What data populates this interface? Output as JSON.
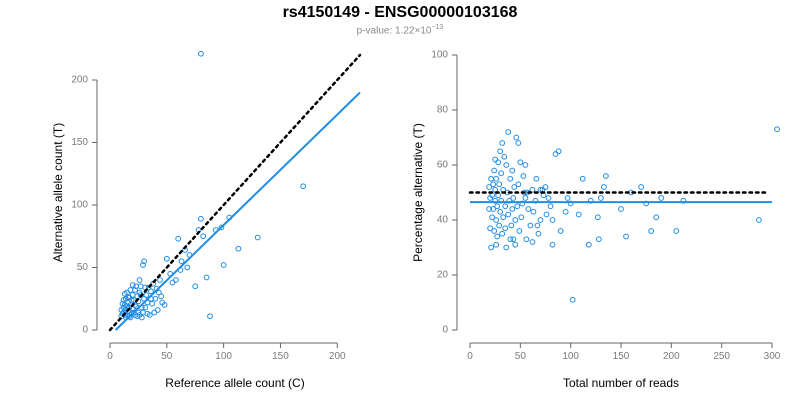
{
  "title": "rs4150149 - ENSG00000103168",
  "subtitle": {
    "prefix": "p-value: ",
    "mantissa": "1.22×10",
    "exponent": "−13"
  },
  "colors": {
    "points": "#1f8ce6",
    "fit": "#1f8ce6",
    "reference": "#000000",
    "axis": "#666666"
  },
  "chart_data": [
    {
      "type": "scatter",
      "xlabel": "Reference allele count (C)",
      "ylabel": "Alternative allele count (T)",
      "xlim": [
        0,
        220
      ],
      "ylim": [
        0,
        220
      ],
      "xticks": [
        0,
        50,
        100,
        150,
        200
      ],
      "yticks": [
        0,
        50,
        100,
        150,
        200
      ],
      "reference_line": {
        "style": "dotted",
        "points": [
          [
            0,
            0
          ],
          [
            220,
            220
          ]
        ]
      },
      "fit_line": {
        "style": "solid",
        "points": [
          [
            5,
            0
          ],
          [
            220,
            190
          ]
        ]
      },
      "points": [
        [
          80,
          221
        ],
        [
          170,
          115
        ],
        [
          130,
          74
        ],
        [
          113,
          65
        ],
        [
          105,
          90
        ],
        [
          100,
          52
        ],
        [
          98,
          82
        ],
        [
          93,
          80
        ],
        [
          88,
          11
        ],
        [
          85,
          42
        ],
        [
          82,
          75
        ],
        [
          80,
          89
        ],
        [
          78,
          80
        ],
        [
          75,
          35
        ],
        [
          70,
          60
        ],
        [
          68,
          50
        ],
        [
          66,
          64
        ],
        [
          63,
          55
        ],
        [
          62,
          48
        ],
        [
          60,
          73
        ],
        [
          58,
          40
        ],
        [
          55,
          38
        ],
        [
          53,
          45
        ],
        [
          50,
          57
        ],
        [
          48,
          20
        ],
        [
          45,
          27
        ],
        [
          43,
          30
        ],
        [
          40,
          25
        ],
        [
          38,
          37
        ],
        [
          36,
          31
        ],
        [
          35,
          12
        ],
        [
          33,
          22
        ],
        [
          32,
          28
        ],
        [
          30,
          55
        ],
        [
          30,
          25
        ],
        [
          29,
          52
        ],
        [
          28,
          18
        ],
        [
          27,
          35
        ],
        [
          26,
          30
        ],
        [
          25,
          23
        ],
        [
          25,
          14
        ],
        [
          24,
          27
        ],
        [
          23,
          19
        ],
        [
          22,
          32
        ],
        [
          22,
          12
        ],
        [
          21,
          24
        ],
        [
          20,
          17
        ],
        [
          20,
          28
        ],
        [
          19,
          13
        ],
        [
          18,
          20
        ],
        [
          18,
          32
        ],
        [
          17,
          11
        ],
        [
          17,
          26
        ],
        [
          16,
          15
        ],
        [
          16,
          22
        ],
        [
          15,
          12
        ],
        [
          15,
          19
        ],
        [
          14,
          25
        ],
        [
          14,
          16
        ],
        [
          13,
          12
        ],
        [
          13,
          29
        ],
        [
          12,
          18
        ],
        [
          12,
          14
        ],
        [
          11,
          21
        ],
        [
          11,
          13
        ],
        [
          10,
          16
        ],
        [
          10,
          11
        ],
        [
          23,
          35
        ],
        [
          27,
          28
        ],
        [
          31,
          18
        ],
        [
          34,
          34
        ],
        [
          37,
          21
        ],
        [
          42,
          16
        ],
        [
          44,
          40
        ],
        [
          46,
          22
        ],
        [
          28,
          10
        ],
        [
          26,
          12
        ],
        [
          24,
          11
        ],
        [
          21,
          14
        ],
        [
          19,
          24
        ],
        [
          17,
          18
        ],
        [
          15,
          30
        ],
        [
          14,
          10
        ],
        [
          22,
          20
        ],
        [
          29,
          14
        ],
        [
          33,
          13
        ],
        [
          36,
          25
        ],
        [
          39,
          14
        ],
        [
          41,
          33
        ],
        [
          31,
          34
        ],
        [
          26,
          40
        ],
        [
          20,
          36
        ],
        [
          18,
          10
        ],
        [
          16,
          26
        ],
        [
          12,
          24
        ],
        [
          13,
          20
        ]
      ]
    },
    {
      "type": "scatter",
      "xlabel": "Total number of reads",
      "ylabel": "Percentage alternative (T)",
      "xlim": [
        0,
        300
      ],
      "ylim": [
        0,
        100
      ],
      "xticks": [
        0,
        50,
        100,
        150,
        200,
        250,
        300
      ],
      "yticks": [
        0,
        20,
        40,
        60,
        80,
        100
      ],
      "reference_line": {
        "style": "dotted",
        "y": 50
      },
      "fit_line": {
        "style": "solid",
        "y": 46.5
      },
      "points": [
        [
          305,
          73
        ],
        [
          287,
          40
        ],
        [
          212,
          47
        ],
        [
          205,
          36
        ],
        [
          190,
          48
        ],
        [
          185,
          41
        ],
        [
          180,
          36
        ],
        [
          175,
          46
        ],
        [
          170,
          52
        ],
        [
          160,
          50
        ],
        [
          155,
          34
        ],
        [
          150,
          44
        ],
        [
          135,
          56
        ],
        [
          133,
          52
        ],
        [
          130,
          48
        ],
        [
          128,
          33
        ],
        [
          120,
          47
        ],
        [
          118,
          31
        ],
        [
          112,
          55
        ],
        [
          102,
          11
        ],
        [
          100,
          46
        ],
        [
          97,
          48
        ],
        [
          95,
          43
        ],
        [
          88,
          65
        ],
        [
          85,
          64
        ],
        [
          82,
          40
        ],
        [
          82,
          31
        ],
        [
          80,
          45
        ],
        [
          78,
          48
        ],
        [
          75,
          52
        ],
        [
          73,
          49
        ],
        [
          70,
          40
        ],
        [
          70,
          51
        ],
        [
          68,
          35
        ],
        [
          67,
          38
        ],
        [
          65,
          47
        ],
        [
          63,
          43
        ],
        [
          62,
          51
        ],
        [
          62,
          32
        ],
        [
          60,
          38
        ],
        [
          58,
          44
        ],
        [
          57,
          50
        ],
        [
          56,
          33
        ],
        [
          55,
          60
        ],
        [
          55,
          48
        ],
        [
          53,
          56
        ],
        [
          52,
          46
        ],
        [
          51,
          41
        ],
        [
          50,
          61
        ],
        [
          49,
          36
        ],
        [
          48,
          53
        ],
        [
          47,
          45
        ],
        [
          46,
          70
        ],
        [
          45,
          40
        ],
        [
          45,
          31
        ],
        [
          44,
          52
        ],
        [
          43,
          48
        ],
        [
          42,
          58
        ],
        [
          42,
          44
        ],
        [
          41,
          38
        ],
        [
          40,
          55
        ],
        [
          40,
          33
        ],
        [
          39,
          47
        ],
        [
          38,
          72
        ],
        [
          38,
          42
        ],
        [
          37,
          50
        ],
        [
          36,
          60
        ],
        [
          35,
          37
        ],
        [
          35,
          45
        ],
        [
          34,
          63
        ],
        [
          33,
          51
        ],
        [
          33,
          41
        ],
        [
          32,
          35
        ],
        [
          31,
          57
        ],
        [
          31,
          47
        ],
        [
          30,
          65
        ],
        [
          30,
          43
        ],
        [
          29,
          38
        ],
        [
          29,
          53
        ],
        [
          28,
          49
        ],
        [
          28,
          61
        ],
        [
          27,
          34
        ],
        [
          27,
          45
        ],
        [
          26,
          55
        ],
        [
          26,
          40
        ],
        [
          25,
          51
        ],
        [
          25,
          47
        ],
        [
          24,
          58
        ],
        [
          24,
          36
        ],
        [
          23,
          44
        ],
        [
          23,
          53
        ],
        [
          22,
          49
        ],
        [
          22,
          41
        ],
        [
          21,
          55
        ],
        [
          20,
          48
        ],
        [
          20,
          37
        ],
        [
          21,
          30
        ],
        [
          26,
          31
        ],
        [
          36,
          30
        ],
        [
          43,
          33
        ],
        [
          48,
          68
        ],
        [
          54,
          50
        ],
        [
          66,
          55
        ],
        [
          72,
          51
        ],
        [
          76,
          42
        ],
        [
          90,
          36
        ],
        [
          108,
          42
        ],
        [
          127,
          41
        ],
        [
          25,
          62
        ],
        [
          32,
          68
        ],
        [
          19,
          52
        ],
        [
          19,
          44
        ]
      ]
    }
  ]
}
